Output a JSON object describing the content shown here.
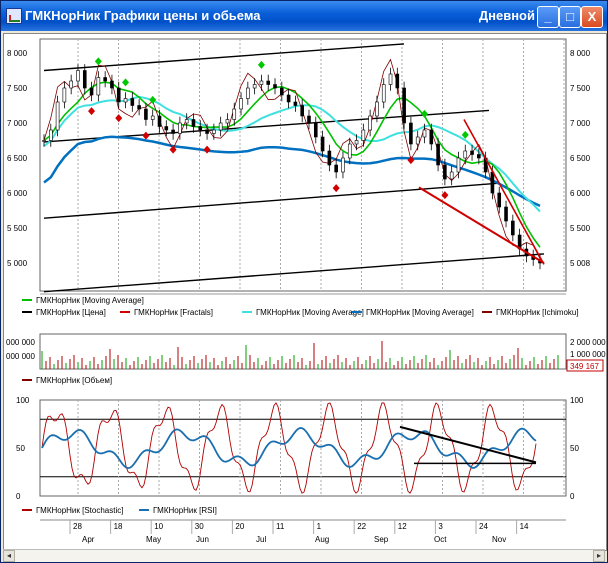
{
  "window": {
    "title": "ГМКНорНик Графики цены и обьема",
    "period": "Дневной",
    "buttons": {
      "minimize": "_",
      "maximize": "□",
      "close": "X"
    }
  },
  "colors": {
    "price": "#000000",
    "fractal_up": "#00c800",
    "fractal_down": "#d00000",
    "ma_green": "#00c000",
    "ma_cyan": "#40e0e0",
    "ma_blue": "#0070c0",
    "ichimoku": "#800000",
    "volume": "#800000",
    "stochastic": "#b00000",
    "rsi": "#1a6fb0"
  },
  "price_panel": {
    "y_ticks": [
      "8 000",
      "7 500",
      "7 000",
      "6 500",
      "6 000",
      "5 500",
      "5 000"
    ],
    "y_ticks_right": [
      "8 000",
      "7 500",
      "7 000",
      "6 500",
      "6 000",
      "5 500",
      "5 008"
    ],
    "last_value": "5 008",
    "legend": [
      {
        "label": "ГМКНорНик [Moving Average]",
        "color": "#00c000"
      },
      {
        "label": "ГМКНорНик [Цена]",
        "color": "#000000"
      },
      {
        "label": "ГМКНорНик [Fractals]",
        "color": "#d00000"
      },
      {
        "label": "ГМКНорНик [Moving Average]",
        "color": "#40e0e0"
      },
      {
        "label": "ГМКНорНик [Moving Average]",
        "color": "#0070c0"
      },
      {
        "label": "ГМКНорНик [Ichimoku]",
        "color": "#800000"
      }
    ]
  },
  "volume_panel": {
    "y_ticks_left": [
      "000 000",
      "000 000"
    ],
    "y_ticks_right": [
      "2 000 000",
      "1 000 000"
    ],
    "last_value": "349 167",
    "legend": [
      {
        "label": "ГМКНорНик [Объем]",
        "color": "#800000"
      }
    ]
  },
  "oscillator_panel": {
    "y_ticks": [
      "100",
      "50",
      "0"
    ],
    "legend": [
      {
        "label": "ГМКНорНик [Stochastic]",
        "color": "#b00000"
      },
      {
        "label": "ГМКНорНик [RSI]",
        "color": "#1a6fb0"
      }
    ]
  },
  "x_axis": {
    "days": [
      "28",
      "18",
      "10",
      "30",
      "20",
      "11",
      "1",
      "22",
      "12",
      "3",
      "24",
      "14"
    ],
    "months": [
      "Apr",
      "May",
      "Jun",
      "Jul",
      "Aug",
      "Sep",
      "Oct",
      "Nov"
    ]
  },
  "chart_data": {
    "type": "line",
    "y_range": [
      4600,
      8200
    ],
    "price_close": [
      6750,
      6900,
      7300,
      7500,
      7600,
      7750,
      7500,
      7400,
      7650,
      7600,
      7500,
      7300,
      7350,
      7250,
      7200,
      7050,
      7100,
      6950,
      6900,
      6850,
      7000,
      7050,
      6950,
      6900,
      6850,
      6900,
      7000,
      7050,
      7200,
      7350,
      7500,
      7550,
      7600,
      7550,
      7500,
      7400,
      7300,
      7250,
      7100,
      7000,
      6800,
      6600,
      6400,
      6300,
      6500,
      6700,
      6750,
      6900,
      7100,
      7300,
      7550,
      7700,
      7500,
      7000,
      6700,
      6800,
      6900,
      6700,
      6400,
      6200,
      6300,
      6500,
      6600,
      6550,
      6500,
      6300,
      6000,
      5800,
      5600,
      5400,
      5200,
      5100,
      5050,
      5000
    ]
  }
}
